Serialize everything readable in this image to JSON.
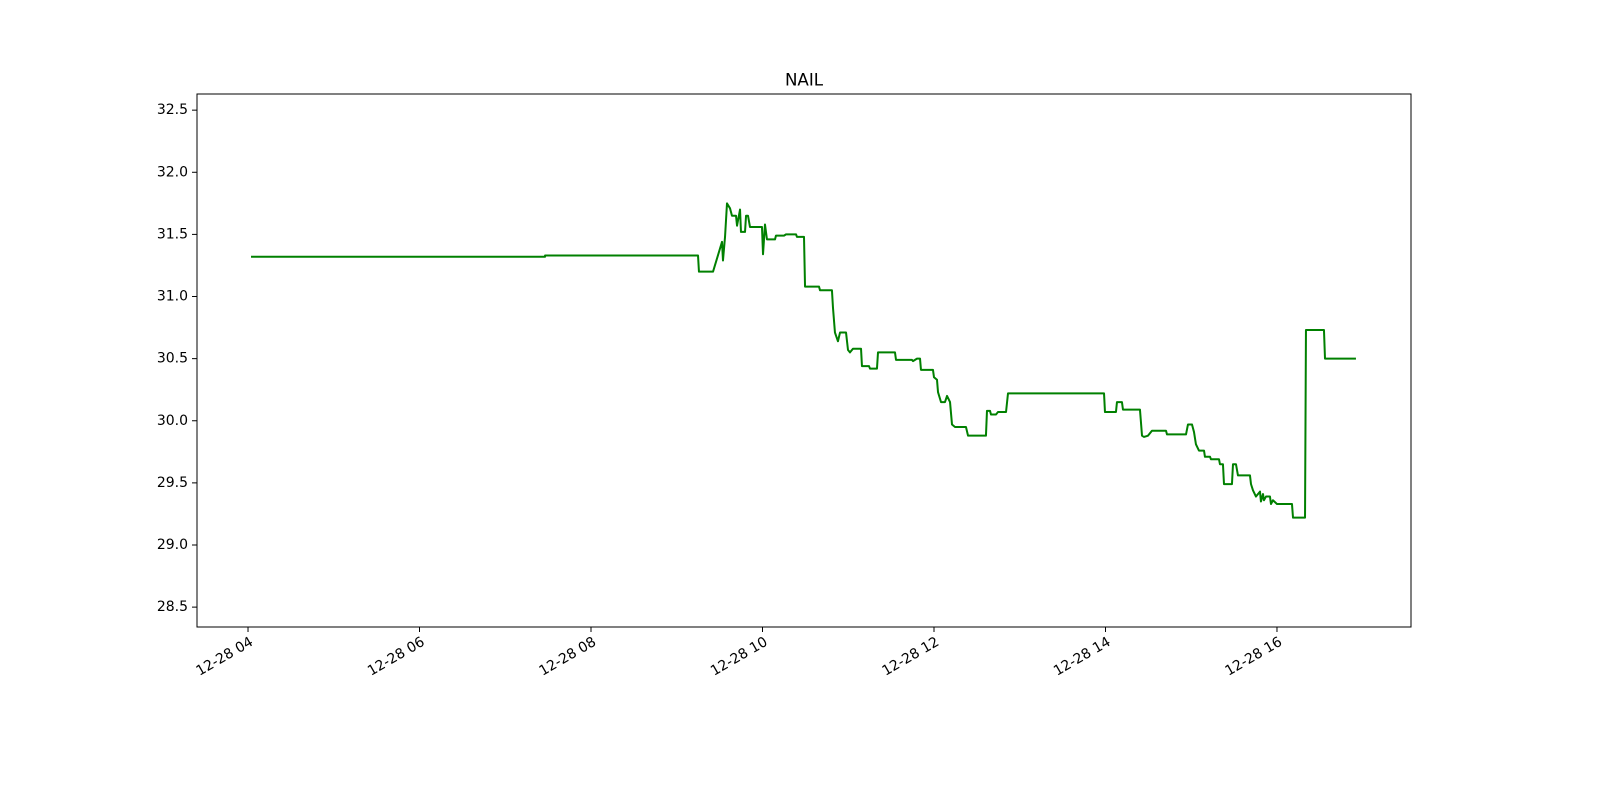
{
  "chart_data": {
    "type": "line",
    "title": "NAIL",
    "color": "#008000",
    "x": [
      4.035,
      7.464,
      7.464,
      9.248,
      9.259,
      9.423,
      9.528,
      9.539,
      9.563,
      9.586,
      9.621,
      9.644,
      9.691,
      9.703,
      9.738,
      9.749,
      9.796,
      9.808,
      9.831,
      9.854,
      9.994,
      10.006,
      10.029,
      10.052,
      10.146,
      10.157,
      10.251,
      10.274,
      10.391,
      10.402,
      10.484,
      10.496,
      10.659,
      10.671,
      10.81,
      10.822,
      10.845,
      10.88,
      10.904,
      10.974,
      10.997,
      11.02,
      11.055,
      11.149,
      11.16,
      11.242,
      11.254,
      11.335,
      11.347,
      11.545,
      11.557,
      11.743,
      11.755,
      11.802,
      11.837,
      11.848,
      11.988,
      12.0,
      12.035,
      12.047,
      12.082,
      12.128,
      12.152,
      12.187,
      12.21,
      12.245,
      12.373,
      12.397,
      12.606,
      12.618,
      12.653,
      12.665,
      12.723,
      12.746,
      12.84,
      12.863,
      13.983,
      13.994,
      14.122,
      14.134,
      14.192,
      14.204,
      14.402,
      14.426,
      14.449,
      14.496,
      14.542,
      14.706,
      14.717,
      14.939,
      14.962,
      15.009,
      15.032,
      15.055,
      15.09,
      15.149,
      15.16,
      15.219,
      15.23,
      15.324,
      15.335,
      15.37,
      15.382,
      15.475,
      15.487,
      15.522,
      15.545,
      15.685,
      15.697,
      15.72,
      15.755,
      15.802,
      15.813,
      15.837,
      15.848,
      15.872,
      15.918,
      15.93,
      15.953,
      16.0,
      16.175,
      16.187,
      16.327,
      16.338,
      16.548,
      16.56,
      16.921
    ],
    "values": [
      31.32,
      31.32,
      31.33,
      31.33,
      31.2,
      31.2,
      31.44,
      31.29,
      31.48,
      31.75,
      31.71,
      31.65,
      31.65,
      31.57,
      31.7,
      31.52,
      31.52,
      31.65,
      31.65,
      31.56,
      31.56,
      31.34,
      31.58,
      31.46,
      31.46,
      31.49,
      31.49,
      31.5,
      31.5,
      31.48,
      31.48,
      31.08,
      31.08,
      31.05,
      31.05,
      30.91,
      30.71,
      30.64,
      30.71,
      30.71,
      30.57,
      30.55,
      30.58,
      30.58,
      30.44,
      30.44,
      30.42,
      30.42,
      30.55,
      30.55,
      30.49,
      30.49,
      30.48,
      30.5,
      30.5,
      30.41,
      30.41,
      30.35,
      30.33,
      30.23,
      30.15,
      30.15,
      30.2,
      30.15,
      29.97,
      29.95,
      29.95,
      29.88,
      29.88,
      30.08,
      30.08,
      30.05,
      30.05,
      30.07,
      30.07,
      30.22,
      30.22,
      30.07,
      30.07,
      30.15,
      30.15,
      30.09,
      30.09,
      29.88,
      29.87,
      29.88,
      29.92,
      29.92,
      29.89,
      29.89,
      29.97,
      29.97,
      29.91,
      29.81,
      29.76,
      29.76,
      29.71,
      29.71,
      29.69,
      29.69,
      29.65,
      29.65,
      29.49,
      29.49,
      29.65,
      29.65,
      29.56,
      29.56,
      29.49,
      29.44,
      29.39,
      29.43,
      29.35,
      29.41,
      29.36,
      29.39,
      29.39,
      29.33,
      29.36,
      29.33,
      29.33,
      29.22,
      29.22,
      30.73,
      30.73,
      30.5,
      30.5
    ],
    "xlim": [
      3.405,
      17.563
    ],
    "xticks": [
      {
        "value": 4,
        "label": "12-28 04"
      },
      {
        "value": 6,
        "label": "12-28 06"
      },
      {
        "value": 8,
        "label": "12-28 08"
      },
      {
        "value": 10,
        "label": "12-28 10"
      },
      {
        "value": 12,
        "label": "12-28 12"
      },
      {
        "value": 14,
        "label": "12-28 14"
      },
      {
        "value": 16,
        "label": "12-28 16"
      }
    ],
    "ylim": [
      28.34,
      32.63
    ],
    "yticks": [
      28.5,
      {
        "value": 29,
        "label": "29.0"
      },
      29.5,
      {
        "value": 30,
        "label": "30.0"
      },
      30.5,
      {
        "value": 31,
        "label": "31.0"
      },
      31.5,
      {
        "value": 32,
        "label": "32.0"
      },
      32.5
    ],
    "grid": false
  }
}
